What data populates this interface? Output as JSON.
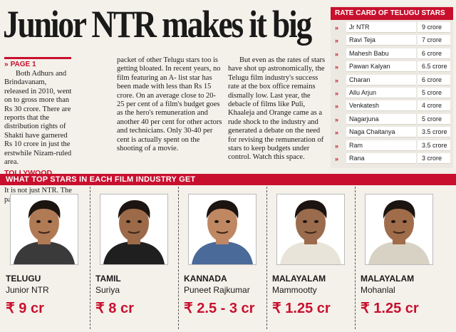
{
  "headline": "Junior NTR makes it big",
  "article": {
    "kicker": "PAGE 1",
    "col1_para1": "Both Adhurs and Brindavanam, released in 2010, went on to gross more than Rs 30 crore. There are reports that the distribution rights of Shakti have garnered Rs 10 crore in just the erstwhile Nizam-ruled area.",
    "subhead": "TOLLYWOOD BOOM",
    "col1_para2": "It is not just NTR. The pay",
    "col2": "packet of other Telugu stars too is getting bloated. In recent years, no film featuring an A- list star has been made with less than Rs 15 crore. On an average close to 20-25 per cent of a film's budget goes as the hero's remuneration and another 40 per cent for other actors and technicians. Only 30-40 per cent is actually spent on the shooting of a movie.",
    "col3": "But even as the rates of stars have shot up astronomically, the Telugu film industry's success rate at the box office remains dismally low. Last year, the debacle of films like Puli, Khaaleja and Orange came as a rude shock to the industry and generated a debate on the need for revising the remuneration of stars to keep budgets under control.  Watch this space."
  },
  "rate_card": {
    "title": "RATE CARD OF TELUGU STARS",
    "rows": [
      {
        "name": "Jr NTR",
        "fee": "9 crore"
      },
      {
        "name": "Ravi Teja",
        "fee": "7 crore"
      },
      {
        "name": "Mahesh Babu",
        "fee": "6 crore"
      },
      {
        "name": "Pawan Kalyan",
        "fee": "6.5 crore"
      },
      {
        "name": "Charan",
        "fee": "6 crore"
      },
      {
        "name": "Allu Arjun",
        "fee": "5 crore"
      },
      {
        "name": "Venkatesh",
        "fee": "4 crore"
      },
      {
        "name": "Nagarjuna",
        "fee": "5 crore"
      },
      {
        "name": "Naga Chaitanya",
        "fee": "3.5 crore"
      },
      {
        "name": "Ram",
        "fee": "3.5 crore"
      },
      {
        "name": "Rana",
        "fee": "3 crore"
      }
    ]
  },
  "top_stars": {
    "title": "WHAT TOP STARS IN EACH FILM INDUSTRY GET",
    "stars": [
      {
        "industry": "TELUGU",
        "name": "Junior NTR",
        "fee": "₹ 9 cr"
      },
      {
        "industry": "TAMIL",
        "name": "Suriya",
        "fee": "₹ 8 cr"
      },
      {
        "industry": "KANNADA",
        "name": "Puneet Rajkumar",
        "fee": "₹ 2.5 - 3 cr"
      },
      {
        "industry": "MALAYALAM",
        "name": "Mammootty",
        "fee": "₹ 1.25 cr"
      },
      {
        "industry": "MALAYALAM",
        "name": "Mohanlal",
        "fee": "₹ 1.25 cr"
      }
    ]
  },
  "colors": {
    "accent": "#c8102e",
    "paper": "#f4f1ea"
  }
}
